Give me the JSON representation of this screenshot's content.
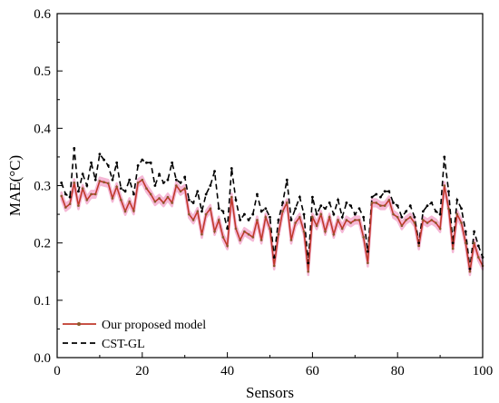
{
  "chart_data": {
    "type": "line",
    "xlabel": "Sensors",
    "ylabel": "MAE(°C)",
    "xlim": [
      0,
      100
    ],
    "ylim": [
      0,
      0.6
    ],
    "xticks": [
      0,
      20,
      40,
      60,
      80,
      100
    ],
    "yticks": [
      0.0,
      0.1,
      0.2,
      0.3,
      0.4,
      0.5,
      0.6
    ],
    "xtick_labels": [
      "0",
      "20",
      "40",
      "60",
      "80",
      "100"
    ],
    "ytick_labels": [
      "0.0",
      "0.1",
      "0.2",
      "0.3",
      "0.4",
      "0.5",
      "0.6"
    ],
    "grid": false,
    "legend_position": "bottom-left",
    "x": [
      1,
      2,
      3,
      4,
      5,
      6,
      7,
      8,
      9,
      10,
      11,
      12,
      13,
      14,
      15,
      16,
      17,
      18,
      19,
      20,
      21,
      22,
      23,
      24,
      25,
      26,
      27,
      28,
      29,
      30,
      31,
      32,
      33,
      34,
      35,
      36,
      37,
      38,
      39,
      40,
      41,
      42,
      43,
      44,
      45,
      46,
      47,
      48,
      49,
      50,
      51,
      52,
      53,
      54,
      55,
      56,
      57,
      58,
      59,
      60,
      61,
      62,
      63,
      64,
      65,
      66,
      67,
      68,
      69,
      70,
      71,
      72,
      73,
      74,
      75,
      76,
      77,
      78,
      79,
      80,
      81,
      82,
      83,
      84,
      85,
      86,
      87,
      88,
      89,
      90,
      91,
      92,
      93,
      94,
      95,
      96,
      97,
      98,
      99,
      100
    ],
    "series": [
      {
        "name": "Our proposed model",
        "color": "#c0392b",
        "band_color": "#f5b8d6",
        "values": [
          0.282,
          0.262,
          0.268,
          0.305,
          0.265,
          0.295,
          0.275,
          0.285,
          0.285,
          0.308,
          0.306,
          0.304,
          0.278,
          0.298,
          0.275,
          0.255,
          0.272,
          0.256,
          0.305,
          0.31,
          0.295,
          0.285,
          0.272,
          0.278,
          0.27,
          0.28,
          0.27,
          0.3,
          0.29,
          0.295,
          0.25,
          0.24,
          0.255,
          0.215,
          0.25,
          0.26,
          0.22,
          0.24,
          0.21,
          0.195,
          0.28,
          0.225,
          0.205,
          0.22,
          0.215,
          0.21,
          0.24,
          0.205,
          0.245,
          0.225,
          0.16,
          0.215,
          0.255,
          0.27,
          0.205,
          0.235,
          0.245,
          0.22,
          0.15,
          0.245,
          0.23,
          0.25,
          0.22,
          0.245,
          0.215,
          0.24,
          0.225,
          0.24,
          0.235,
          0.24,
          0.24,
          0.21,
          0.165,
          0.27,
          0.27,
          0.265,
          0.265,
          0.275,
          0.25,
          0.245,
          0.23,
          0.24,
          0.245,
          0.235,
          0.195,
          0.24,
          0.235,
          0.24,
          0.235,
          0.225,
          0.3,
          0.26,
          0.19,
          0.25,
          0.235,
          0.2,
          0.15,
          0.2,
          0.175,
          0.16
        ]
      },
      {
        "name": "CST-GL",
        "color": "#000000",
        "values": [
          0.305,
          0.285,
          0.28,
          0.365,
          0.29,
          0.32,
          0.3,
          0.34,
          0.31,
          0.355,
          0.345,
          0.335,
          0.31,
          0.34,
          0.295,
          0.29,
          0.31,
          0.285,
          0.335,
          0.345,
          0.34,
          0.34,
          0.3,
          0.32,
          0.305,
          0.31,
          0.34,
          0.31,
          0.305,
          0.315,
          0.275,
          0.27,
          0.29,
          0.255,
          0.285,
          0.3,
          0.325,
          0.26,
          0.255,
          0.225,
          0.33,
          0.275,
          0.24,
          0.25,
          0.24,
          0.25,
          0.285,
          0.255,
          0.26,
          0.245,
          0.175,
          0.24,
          0.27,
          0.31,
          0.24,
          0.26,
          0.28,
          0.25,
          0.165,
          0.28,
          0.25,
          0.265,
          0.26,
          0.27,
          0.25,
          0.275,
          0.245,
          0.27,
          0.265,
          0.25,
          0.26,
          0.245,
          0.185,
          0.28,
          0.285,
          0.28,
          0.29,
          0.29,
          0.27,
          0.265,
          0.245,
          0.255,
          0.265,
          0.245,
          0.2,
          0.255,
          0.265,
          0.27,
          0.255,
          0.25,
          0.35,
          0.29,
          0.2,
          0.275,
          0.26,
          0.22,
          0.155,
          0.22,
          0.195,
          0.175
        ]
      }
    ]
  }
}
